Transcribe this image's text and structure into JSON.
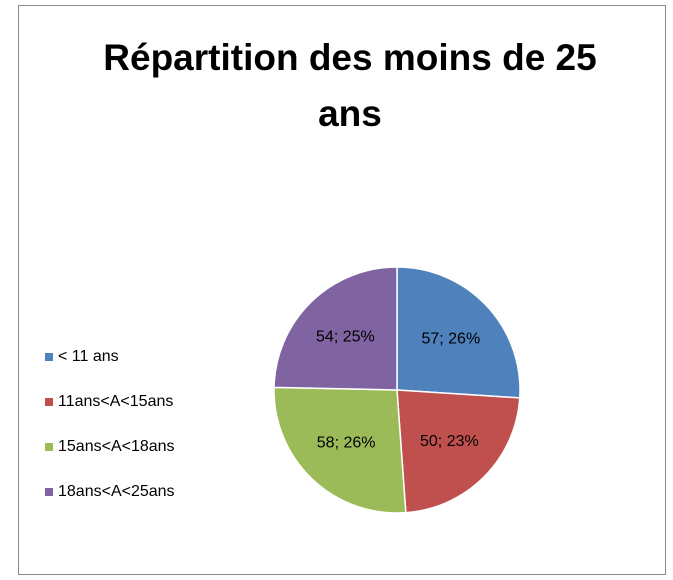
{
  "chart_data": {
    "type": "pie",
    "title": "Répartition des moins de 25 ans",
    "categories": [
      "< 11 ans",
      "11ans<A<15ans",
      "15ans<A<18ans",
      "18ans<A<25ans"
    ],
    "values": [
      57,
      50,
      58,
      54
    ],
    "value_labels": [
      "57; 26%",
      "50; 23%",
      "58; 26%",
      "54; 25%"
    ],
    "colors": [
      "#4f81bd",
      "#c0504d",
      "#9bbb59",
      "#8064a2"
    ],
    "legend": "left"
  }
}
